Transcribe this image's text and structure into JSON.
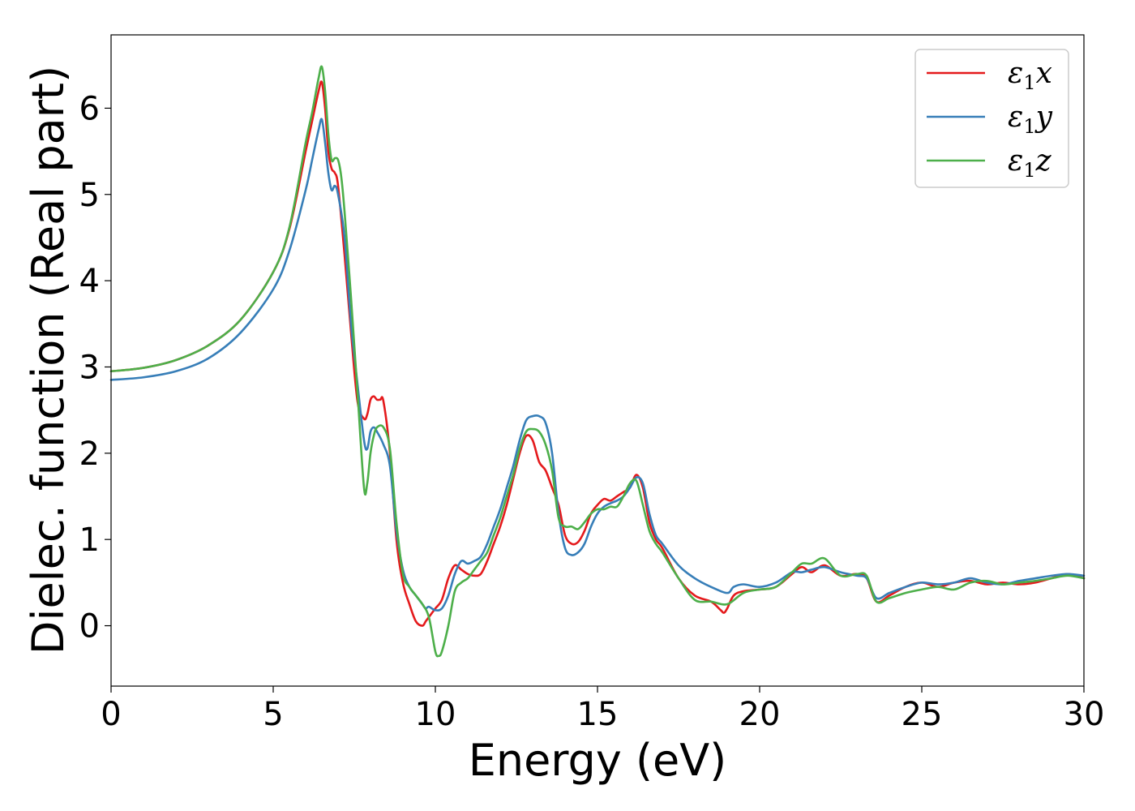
{
  "chart_data": {
    "type": "line",
    "title": "",
    "xlabel": "Energy (eV)",
    "ylabel": "Dielec. function (Real part)",
    "xlim": [
      0,
      30
    ],
    "ylim": [
      -0.7,
      6.85
    ],
    "xticks": [
      0,
      5,
      10,
      15,
      20,
      25,
      30
    ],
    "yticks": [
      0,
      1,
      2,
      3,
      4,
      5,
      6
    ],
    "grid": false,
    "legend_position": "top-right",
    "series": [
      {
        "name": "ε₁x",
        "legend_base": "ε",
        "legend_sub": "1",
        "legend_suffix": "x",
        "color": "#e41a1c",
        "x": [
          0,
          1,
          2,
          3,
          4,
          5,
          5.5,
          6,
          6.2,
          6.4,
          6.5,
          6.6,
          6.7,
          6.8,
          6.9,
          7.0,
          7.2,
          7.4,
          7.6,
          7.8,
          7.9,
          8.0,
          8.1,
          8.2,
          8.3,
          8.4,
          8.6,
          8.8,
          9.0,
          9.2,
          9.4,
          9.6,
          9.7,
          9.8,
          10.0,
          10.2,
          10.4,
          10.6,
          10.8,
          11.0,
          11.2,
          11.4,
          11.6,
          11.8,
          12.0,
          12.2,
          12.4,
          12.6,
          12.8,
          13.0,
          13.2,
          13.4,
          13.6,
          13.8,
          14.0,
          14.2,
          14.4,
          14.6,
          14.8,
          15.0,
          15.2,
          15.4,
          15.6,
          15.8,
          16.0,
          16.2,
          16.4,
          16.6,
          16.8,
          17.0,
          17.5,
          18.0,
          18.5,
          18.8,
          18.9,
          19.0,
          19.2,
          19.5,
          20.0,
          20.5,
          21.0,
          21.3,
          21.6,
          22.0,
          22.5,
          23.0,
          23.3,
          23.6,
          24.0,
          24.5,
          25.0,
          25.5,
          26.0,
          26.5,
          27.0,
          27.5,
          28.0,
          28.5,
          29.0,
          29.5,
          30.0
        ],
        "y": [
          2.95,
          2.99,
          3.08,
          3.25,
          3.55,
          4.1,
          4.6,
          5.5,
          5.85,
          6.2,
          6.3,
          6.0,
          5.5,
          5.3,
          5.25,
          5.1,
          4.3,
          3.4,
          2.6,
          2.4,
          2.45,
          2.62,
          2.66,
          2.62,
          2.62,
          2.6,
          2.0,
          1.0,
          0.5,
          0.25,
          0.05,
          0.0,
          0.05,
          0.1,
          0.2,
          0.3,
          0.55,
          0.7,
          0.65,
          0.6,
          0.58,
          0.6,
          0.75,
          0.95,
          1.15,
          1.4,
          1.7,
          2.0,
          2.2,
          2.15,
          1.9,
          1.8,
          1.6,
          1.4,
          1.05,
          0.95,
          0.97,
          1.1,
          1.3,
          1.4,
          1.47,
          1.45,
          1.5,
          1.55,
          1.6,
          1.75,
          1.6,
          1.2,
          1.0,
          0.9,
          0.55,
          0.35,
          0.28,
          0.18,
          0.15,
          0.2,
          0.35,
          0.4,
          0.42,
          0.45,
          0.6,
          0.68,
          0.62,
          0.7,
          0.58,
          0.6,
          0.55,
          0.28,
          0.35,
          0.45,
          0.5,
          0.45,
          0.5,
          0.52,
          0.48,
          0.5,
          0.48,
          0.5,
          0.55,
          0.6,
          0.55
        ]
      },
      {
        "name": "ε₁y",
        "legend_base": "ε",
        "legend_sub": "1",
        "legend_suffix": "y",
        "color": "#377eb8",
        "x": [
          0,
          1,
          2,
          3,
          4,
          5,
          5.5,
          6,
          6.2,
          6.4,
          6.5,
          6.6,
          6.7,
          6.8,
          6.9,
          7.0,
          7.2,
          7.4,
          7.6,
          7.8,
          7.9,
          8.0,
          8.1,
          8.2,
          8.4,
          8.6,
          8.8,
          9.0,
          9.2,
          9.4,
          9.6,
          9.7,
          9.8,
          10.0,
          10.2,
          10.4,
          10.6,
          10.8,
          11.0,
          11.2,
          11.4,
          11.6,
          11.8,
          12.0,
          12.2,
          12.4,
          12.6,
          12.8,
          13.0,
          13.2,
          13.4,
          13.6,
          13.8,
          14.0,
          14.2,
          14.4,
          14.6,
          14.8,
          15.0,
          15.2,
          15.4,
          15.6,
          15.8,
          16.0,
          16.2,
          16.4,
          16.6,
          16.8,
          17.0,
          17.5,
          18.0,
          18.5,
          19.0,
          19.2,
          19.5,
          20.0,
          20.5,
          21.0,
          21.3,
          21.6,
          22.0,
          22.5,
          23.0,
          23.3,
          23.6,
          24.0,
          24.5,
          25.0,
          25.5,
          26.0,
          26.5,
          27.0,
          27.5,
          28.0,
          28.5,
          29.0,
          29.5,
          30.0
        ],
        "y": [
          2.85,
          2.88,
          2.95,
          3.1,
          3.4,
          3.9,
          4.35,
          5.05,
          5.4,
          5.75,
          5.87,
          5.6,
          5.25,
          5.05,
          5.1,
          5.0,
          4.5,
          3.5,
          2.8,
          2.15,
          2.05,
          2.25,
          2.3,
          2.25,
          2.1,
          1.85,
          1.1,
          0.65,
          0.45,
          0.35,
          0.25,
          0.2,
          0.22,
          0.18,
          0.2,
          0.35,
          0.6,
          0.75,
          0.72,
          0.75,
          0.8,
          0.95,
          1.15,
          1.35,
          1.6,
          1.85,
          2.15,
          2.38,
          2.43,
          2.43,
          2.35,
          2.0,
          1.3,
          0.9,
          0.82,
          0.85,
          0.95,
          1.15,
          1.3,
          1.38,
          1.42,
          1.45,
          1.5,
          1.6,
          1.72,
          1.65,
          1.3,
          1.05,
          0.95,
          0.7,
          0.55,
          0.45,
          0.38,
          0.45,
          0.48,
          0.45,
          0.5,
          0.62,
          0.62,
          0.65,
          0.68,
          0.62,
          0.58,
          0.55,
          0.32,
          0.38,
          0.45,
          0.5,
          0.48,
          0.5,
          0.55,
          0.5,
          0.48,
          0.52,
          0.55,
          0.58,
          0.6,
          0.58
        ]
      },
      {
        "name": "ε₁z",
        "legend_base": "ε",
        "legend_sub": "1",
        "legend_suffix": "z",
        "color": "#4daf4a",
        "x": [
          0,
          1,
          2,
          3,
          4,
          5,
          5.5,
          6,
          6.2,
          6.4,
          6.5,
          6.6,
          6.7,
          6.8,
          6.9,
          7.0,
          7.1,
          7.2,
          7.4,
          7.6,
          7.8,
          7.9,
          8.0,
          8.1,
          8.2,
          8.4,
          8.6,
          8.8,
          9.0,
          9.2,
          9.4,
          9.6,
          9.8,
          10.0,
          10.1,
          10.2,
          10.4,
          10.6,
          10.8,
          11.0,
          11.2,
          11.4,
          11.6,
          11.8,
          12.0,
          12.2,
          12.4,
          12.6,
          12.8,
          13.0,
          13.2,
          13.4,
          13.6,
          13.8,
          14.0,
          14.2,
          14.4,
          14.6,
          14.8,
          15.0,
          15.2,
          15.4,
          15.6,
          15.8,
          16.0,
          16.2,
          16.4,
          16.6,
          16.8,
          17.0,
          17.5,
          18.0,
          18.5,
          19.0,
          19.5,
          20.0,
          20.5,
          21.0,
          21.3,
          21.6,
          22.0,
          22.5,
          23.0,
          23.3,
          23.6,
          24.0,
          24.5,
          25.0,
          25.5,
          26.0,
          26.5,
          27.0,
          27.5,
          28.0,
          28.5,
          29.0,
          29.5,
          30.0
        ],
        "y": [
          2.95,
          2.99,
          3.08,
          3.25,
          3.55,
          4.1,
          4.62,
          5.6,
          5.95,
          6.35,
          6.48,
          6.2,
          5.7,
          5.4,
          5.42,
          5.4,
          5.2,
          4.8,
          3.8,
          2.7,
          1.6,
          1.65,
          2.0,
          2.2,
          2.3,
          2.3,
          2.05,
          1.2,
          0.6,
          0.45,
          0.35,
          0.25,
          0.1,
          -0.3,
          -0.35,
          -0.3,
          0.0,
          0.4,
          0.5,
          0.55,
          0.65,
          0.75,
          0.85,
          1.05,
          1.25,
          1.5,
          1.75,
          2.05,
          2.25,
          2.28,
          2.25,
          2.1,
          1.8,
          1.25,
          1.15,
          1.15,
          1.12,
          1.2,
          1.3,
          1.35,
          1.35,
          1.38,
          1.38,
          1.5,
          1.65,
          1.68,
          1.4,
          1.1,
          0.95,
          0.85,
          0.55,
          0.3,
          0.28,
          0.25,
          0.38,
          0.42,
          0.45,
          0.62,
          0.72,
          0.72,
          0.78,
          0.58,
          0.6,
          0.58,
          0.28,
          0.32,
          0.38,
          0.42,
          0.45,
          0.42,
          0.5,
          0.52,
          0.48,
          0.5,
          0.52,
          0.55,
          0.58,
          0.55
        ]
      }
    ]
  }
}
